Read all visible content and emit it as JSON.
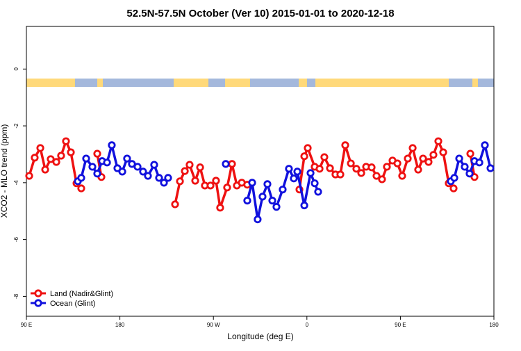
{
  "chart_data": {
    "type": "line",
    "title": "52.5N-57.5N October (Ver 10)   2015-01-01 to 2020-12-18",
    "xlabel": "Longitude (deg E)",
    "ylabel": "XCO2 - MLO trend (ppm)",
    "xlim": [
      90,
      540
    ],
    "ylim": [
      -8.7,
      1.5
    ],
    "xticks": [
      {
        "value": 90,
        "label": "90 E"
      },
      180,
      {
        "value": 270,
        "label": "90 W"
      },
      {
        "value": 360,
        "label": "0"
      },
      {
        "value": 450,
        "label": "90 E"
      },
      {
        "value": 540,
        "label": "180"
      }
    ],
    "yticks": [
      0,
      -2,
      -4,
      -6,
      -8
    ],
    "grid": false,
    "legend": "lower left",
    "series": [
      {
        "name": "Land (Nadir&Glint)",
        "color": "#ee1111",
        "x": [
          92.7,
          98.0,
          103.4,
          108.1,
          113.4,
          118.8,
          123.4,
          128.1,
          132.8,
          138.2,
          142.8,
          null,
          158.2,
          162.2,
          null,
          233.1,
          237.8,
          242.5,
          247.1,
          252.5,
          257.2,
          261.8,
          267.2,
          272.5,
          276.5,
          283.2,
          287.9,
          292.6,
          297.3,
          302.6,
          null,
          352.8,
          357.5,
          360.8,
          367.5,
          372.2,
          376.8,
          382.2,
          387.5,
          392.2,
          396.9,
          402.3,
          407.6,
          412.3,
          417.0,
          422.3,
          427.0,
          432.3,
          437.0,
          442.4,
          447.1,
          451.7,
          457.1,
          461.8,
          467.1,
          471.8,
          477.1,
          481.8,
          486.5,
          491.2,
          496.5,
          501.2,
          null,
          517.3,
          521.3
        ],
        "values": [
          -3.76,
          -3.12,
          -2.78,
          -3.54,
          -3.17,
          -3.27,
          -3.05,
          -2.54,
          -2.93,
          -4.02,
          -4.2,
          null,
          -2.98,
          -3.8,
          null,
          -4.76,
          -3.95,
          -3.59,
          -3.37,
          -3.93,
          -3.46,
          -4.1,
          -4.1,
          -3.93,
          -4.88,
          -4.17,
          -3.34,
          -4.1,
          -4.0,
          -4.07,
          null,
          -4.24,
          -3.07,
          -2.78,
          -3.44,
          -3.51,
          -3.1,
          -3.49,
          -3.71,
          -3.71,
          -2.68,
          -3.32,
          -3.51,
          -3.66,
          -3.44,
          -3.46,
          -3.76,
          -3.88,
          -3.44,
          -3.22,
          -3.32,
          -3.76,
          -3.15,
          -2.78,
          -3.54,
          -3.15,
          -3.27,
          -3.02,
          -2.54,
          -2.93,
          -4.02,
          -4.2,
          null,
          -2.98,
          -3.8
        ]
      },
      {
        "name": "Ocean (Glint)",
        "color": "#1111dd",
        "x": [
          139.5,
          142.8,
          147.5,
          153.5,
          158.2,
          162.9,
          167.6,
          172.2,
          177.6,
          182.3,
          186.9,
          191.6,
          197.0,
          202.3,
          207.0,
          213.0,
          217.7,
          222.4,
          226.4,
          null,
          281.9,
          null,
          302.6,
          307.3,
          312.6,
          317.3,
          322.0,
          326.7,
          330.7,
          336.7,
          342.7,
          347.4,
          350.8,
          357.5,
          363.5,
          367.5,
          370.8,
          null,
          498.5,
          501.9,
          506.6,
          511.9,
          516.6,
          521.3,
          526.0,
          531.3,
          536.7
        ],
        "values": [
          -3.95,
          -3.83,
          -3.15,
          -3.44,
          -3.68,
          -3.24,
          -3.29,
          -2.68,
          -3.49,
          -3.61,
          -3.15,
          -3.34,
          -3.44,
          -3.61,
          -3.76,
          -3.37,
          -3.83,
          -4.0,
          -3.83,
          null,
          -3.34,
          null,
          -4.63,
          -4.0,
          -5.29,
          -4.49,
          -4.05,
          -4.63,
          -4.85,
          -4.24,
          -3.51,
          -3.85,
          -3.61,
          -4.8,
          -3.66,
          -4.02,
          -4.32,
          null,
          -3.95,
          -3.83,
          -3.15,
          -3.44,
          -3.68,
          -3.24,
          -3.29,
          -2.68,
          -3.49
        ]
      }
    ]
  }
}
